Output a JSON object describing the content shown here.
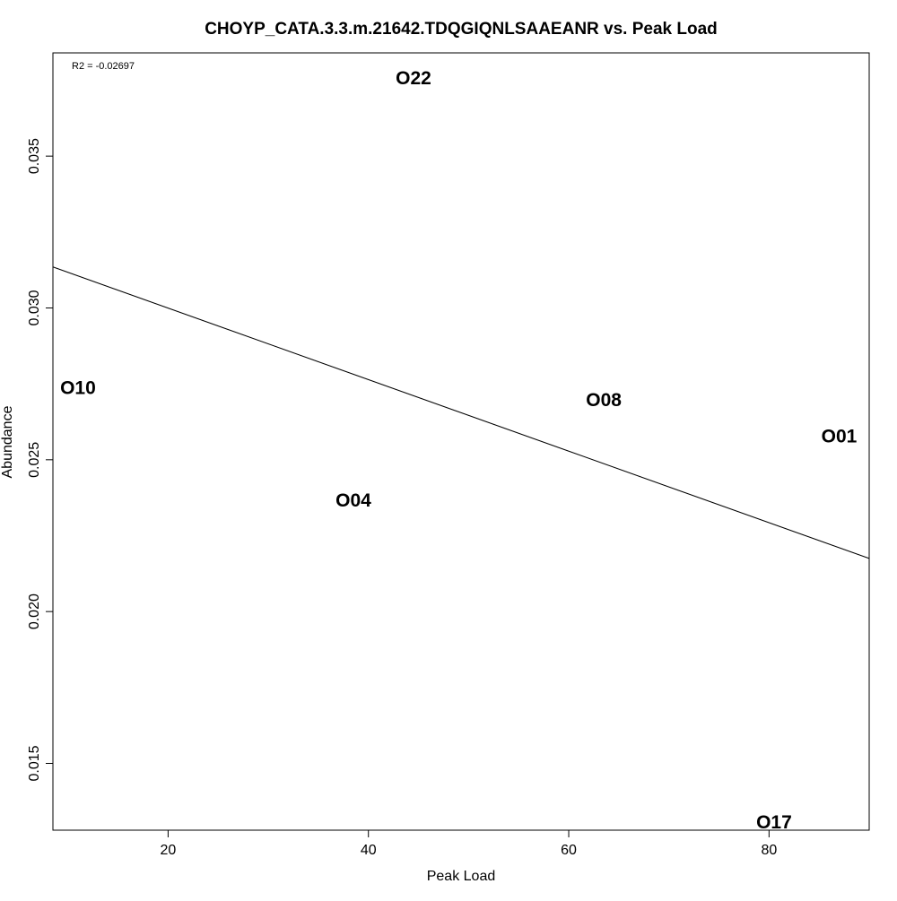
{
  "chart_data": {
    "type": "scatter",
    "title": "CHOYP_CATA.3.3.m.21642.TDQGIQNLSAAEANR vs. Peak Load",
    "xlabel": "Peak Load",
    "ylabel": "Abundance",
    "annotation": "R2 = -0.02697",
    "xlim": [
      8.5,
      90
    ],
    "ylim": [
      0.0128,
      0.0384
    ],
    "x_ticks": [
      20,
      40,
      60,
      80
    ],
    "y_ticks": [
      0.015,
      0.02,
      0.025,
      0.03,
      0.035
    ],
    "x_tick_labels": [
      "20",
      "40",
      "60",
      "80"
    ],
    "y_tick_labels": [
      "0.015",
      "0.020",
      "0.025",
      "0.030",
      "0.035"
    ],
    "points": [
      {
        "label": "O22",
        "x": 44.5,
        "y": 0.0376
      },
      {
        "label": "O10",
        "x": 11.0,
        "y": 0.0274
      },
      {
        "label": "O08",
        "x": 63.5,
        "y": 0.027
      },
      {
        "label": "O01",
        "x": 87.0,
        "y": 0.0258
      },
      {
        "label": "O04",
        "x": 38.5,
        "y": 0.0237
      },
      {
        "label": "O17",
        "x": 80.5,
        "y": 0.0131
      }
    ],
    "fit_line": {
      "x": [
        8.5,
        90
      ],
      "y": [
        0.03135,
        0.02175
      ]
    },
    "grid": false,
    "legend": "none"
  }
}
